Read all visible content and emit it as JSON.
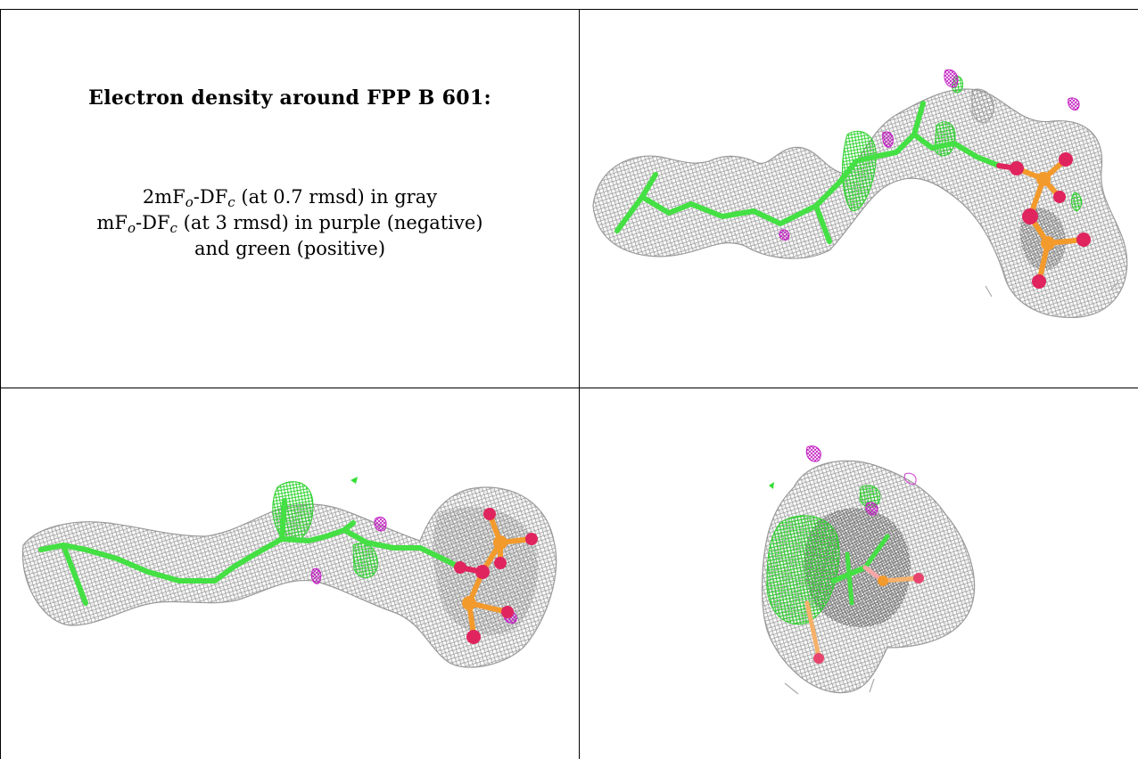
{
  "caption": {
    "title": "Electron density around FPP B 601:",
    "legend_line1": {
      "pre": "2mF",
      "sub1": "o",
      "mid": "-DF",
      "sub2": "c",
      "post": " (at 0.7 rmsd) in gray"
    },
    "legend_line2": {
      "pre": "mF",
      "sub1": "o",
      "mid": "-DF",
      "sub2": "c",
      "post": " (at 3 rmsd) in purple (negative)"
    },
    "legend_line3": "and green (positive)"
  },
  "views": [
    {
      "name": "view-top-right"
    },
    {
      "name": "view-bottom-left"
    },
    {
      "name": "view-bottom-right"
    }
  ],
  "colors": {
    "mesh_gray": "#9a9a9a",
    "mesh_dark": "#6e6e6e",
    "carbon_green": "#44e044",
    "density_green": "#33dd33",
    "density_purple": "#cc33cc",
    "oxygen": "#e0245e",
    "phosphorus": "#f39a2c"
  }
}
